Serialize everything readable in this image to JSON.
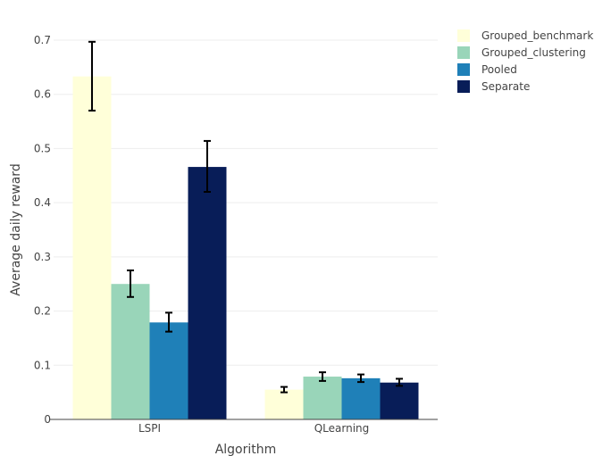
{
  "chart_data": {
    "type": "bar",
    "categories": [
      "LSPI",
      "QLearning"
    ],
    "series": [
      {
        "name": "Grouped_benchmark",
        "color": "#ffffd9",
        "values": [
          0.633,
          0.055
        ],
        "error_low": [
          0.57,
          0.05
        ],
        "error_high": [
          0.697,
          0.06
        ]
      },
      {
        "name": "Grouped_clustering",
        "color": "#99d5b9",
        "values": [
          0.25,
          0.079
        ],
        "error_low": [
          0.226,
          0.071
        ],
        "error_high": [
          0.275,
          0.087
        ]
      },
      {
        "name": "Pooled",
        "color": "#1f80b8",
        "values": [
          0.179,
          0.076
        ],
        "error_low": [
          0.162,
          0.069
        ],
        "error_high": [
          0.197,
          0.083
        ]
      },
      {
        "name": "Separate",
        "color": "#081d58",
        "values": [
          0.466,
          0.068
        ],
        "error_low": [
          0.42,
          0.062
        ],
        "error_high": [
          0.514,
          0.075
        ]
      }
    ],
    "xlabel": "Algorithm",
    "ylabel": "Average daily reward",
    "ylim": [
      0,
      0.7
    ],
    "yticks": [
      0,
      0.1,
      0.2,
      0.3,
      0.4,
      0.5,
      0.6,
      0.7
    ],
    "ytick_labels": [
      "0",
      "0.1",
      "0.2",
      "0.3",
      "0.4",
      "0.5",
      "0.6",
      "0.7"
    ],
    "grid": true,
    "legend_position": "top-right",
    "error_bars": true
  }
}
